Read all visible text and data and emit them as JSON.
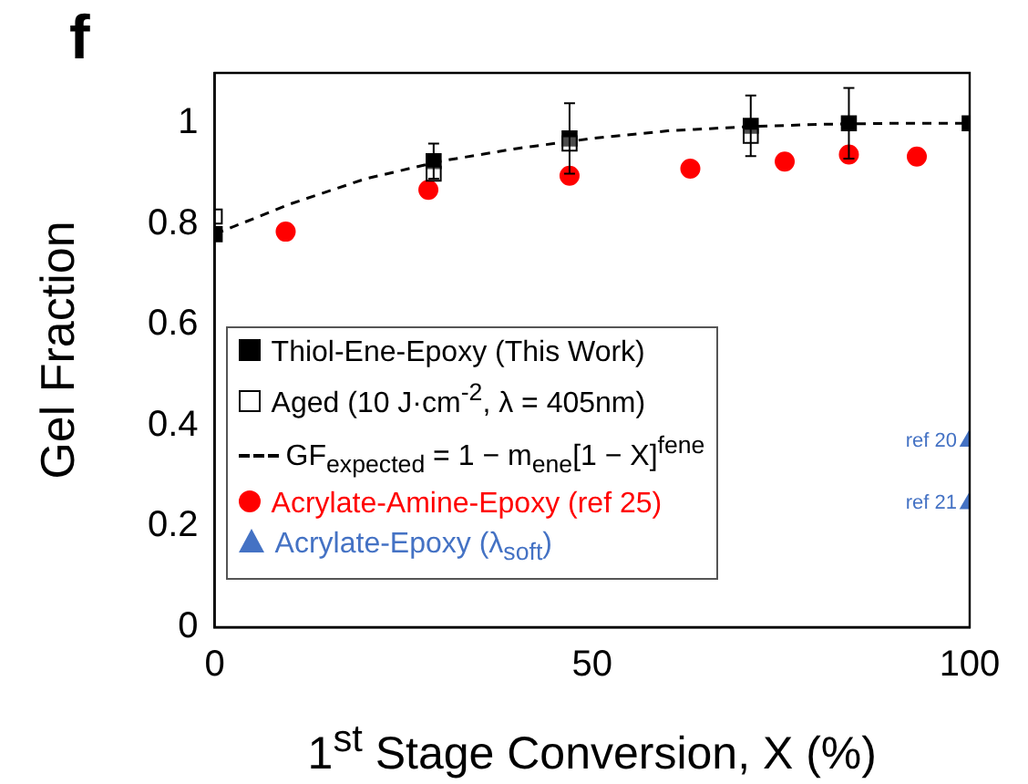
{
  "chart_data": {
    "type": "scatter",
    "title": "f",
    "xlabel": "1$^{st}$ Stage Conversion, X (%)",
    "ylabel": "Gel Fraction",
    "xlim": [
      0,
      100
    ],
    "xticks": [
      0,
      50,
      100
    ],
    "ylim": [
      0,
      1.1
    ],
    "yticks": [
      0,
      0.2,
      0.4,
      0.6,
      0.8,
      1
    ],
    "grid": false,
    "legend": "bottom left",
    "series": [
      {
        "name": "Thiol-Ene-Epoxy (This Work)",
        "type": "scatter",
        "marker": "square",
        "color": "#000000",
        "x": [
          0,
          29,
          47,
          71,
          84,
          100
        ],
        "values": [
          0.78,
          0.925,
          0.97,
          0.995,
          1.0,
          1.0
        ],
        "errors": [
          null,
          0.035,
          0.07,
          0.06,
          0.07,
          null
        ]
      },
      {
        "name": "Aged (10 J·cm$^{-2}$, λ = 405nm)",
        "type": "scatter",
        "marker": "square",
        "color": "#000000",
        "x": [
          0,
          29,
          47,
          71
        ],
        "values": [
          0.815,
          0.9,
          0.96,
          0.975
        ]
      },
      {
        "name": "GF$_{expected}$ = 1 − m$_{ene}$[1 − X]$^{fene}$",
        "type": "line",
        "marker": "none",
        "line_style": "dashed",
        "color": "#000000",
        "x": [
          0,
          10,
          20,
          30,
          40,
          50,
          60,
          70,
          80,
          90,
          100
        ],
        "values": [
          0.78,
          0.84,
          0.89,
          0.925,
          0.95,
          0.97,
          0.985,
          0.993,
          0.998,
          1.0,
          1.0
        ]
      },
      {
        "name": "Acrylate-Amine-Epoxy (ref 25)",
        "type": "scatter",
        "marker": "circle",
        "color": "#ff0000",
        "x": [
          9.4,
          28.3,
          47,
          63,
          75.5,
          84,
          93
        ],
        "values": [
          0.785,
          0.868,
          0.896,
          0.91,
          0.924,
          0.938,
          0.934
        ]
      },
      {
        "name": "Acrylate-Epoxy (λ$_{soft}$)",
        "type": "scatter",
        "marker": "triangle",
        "color": "#4472c4",
        "x": [
          100,
          100
        ],
        "values": [
          0.37,
          0.246
        ]
      }
    ],
    "annotations": [
      {
        "text": "ref 20",
        "x": 100,
        "y": 0.37
      },
      {
        "text": "ref 21",
        "x": 100,
        "y": 0.246
      }
    ]
  }
}
